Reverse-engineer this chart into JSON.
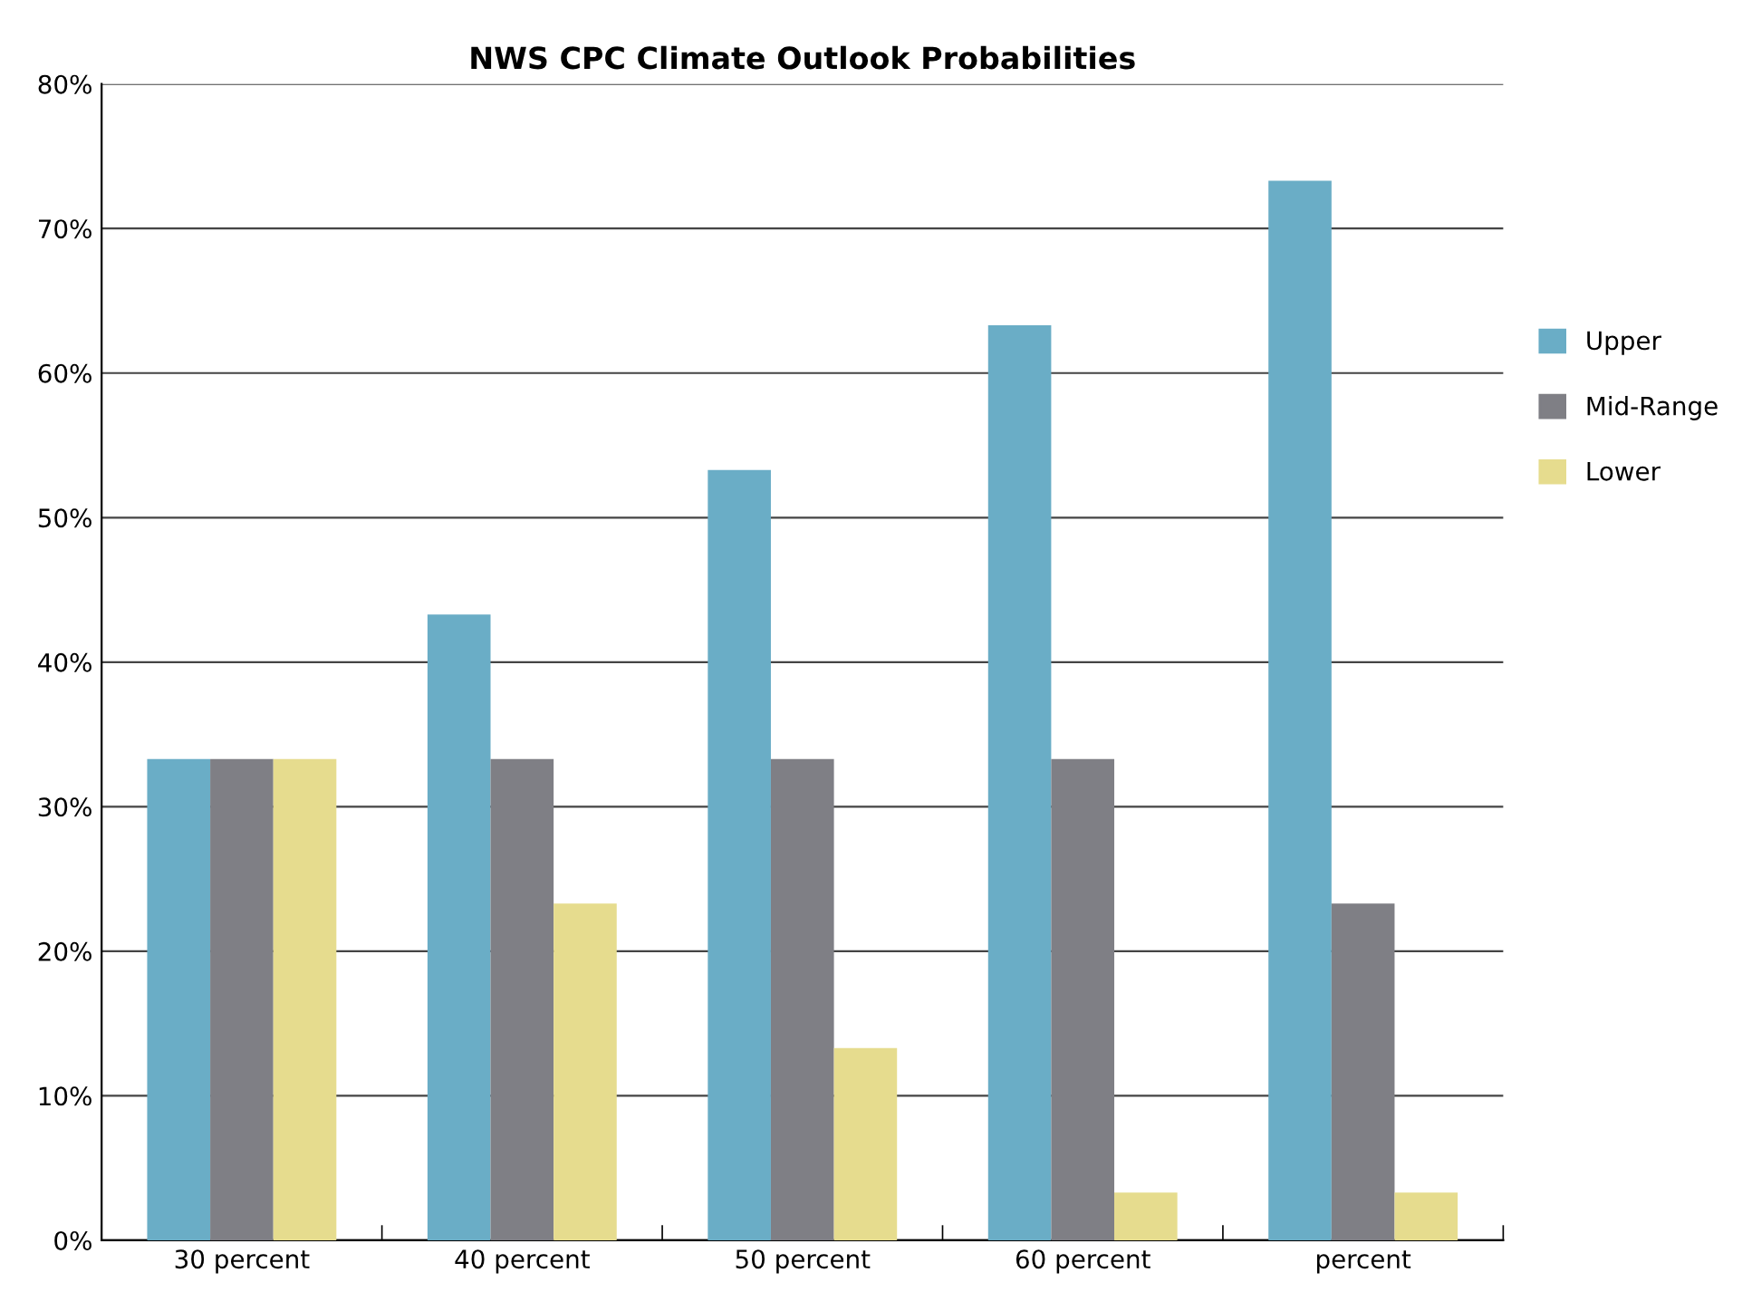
{
  "chart_data": {
    "type": "bar",
    "title": "NWS CPC Climate Outlook Probabilities",
    "categories": [
      "30 percent",
      "40 percent",
      "50 percent",
      "60 percent",
      "percent"
    ],
    "series": [
      {
        "name": "Upper",
        "color": "#6aadc6",
        "values": [
          33.3,
          43.3,
          53.3,
          63.3,
          73.3
        ]
      },
      {
        "name": "Mid-Range",
        "color": "#7f7f85",
        "values": [
          33.3,
          33.3,
          33.3,
          33.3,
          23.3
        ]
      },
      {
        "name": "Lower",
        "color": "#e6dc8e",
        "values": [
          33.3,
          23.3,
          13.3,
          3.3,
          3.3
        ]
      }
    ],
    "ylim": [
      0,
      80
    ],
    "yticks": [
      {
        "value": 0,
        "label": "0%"
      },
      {
        "value": 10,
        "label": "10%"
      },
      {
        "value": 20,
        "label": "20%"
      },
      {
        "value": 30,
        "label": "30%"
      },
      {
        "value": 40,
        "label": "40%"
      },
      {
        "value": 50,
        "label": "50%"
      },
      {
        "value": 60,
        "label": "60%"
      },
      {
        "value": 70,
        "label": "70%"
      },
      {
        "value": 80,
        "label": "80%"
      }
    ],
    "grid": "y",
    "legend": "right"
  }
}
